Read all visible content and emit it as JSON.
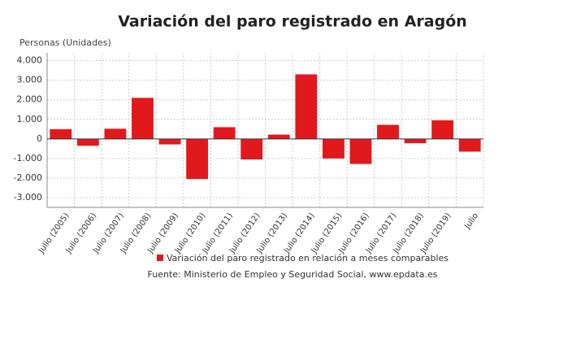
{
  "chart_data": {
    "type": "bar",
    "title": "Variación del paro registrado en Aragón",
    "y_label": "Personas (Unidades)",
    "categories": [
      "Julio (2005)",
      "Julio (2006)",
      "Julio (2007)",
      "Julio (2008)",
      "Julio (2009)",
      "Julio (2010)",
      "Julio (2011)",
      "Julio (2012)",
      "Julio (2013)",
      "Julio (2014)",
      "Julio (2015)",
      "Julio (2016)",
      "Julio (2017)",
      "Julio (2018)",
      "Julio (2019)",
      "Julio"
    ],
    "series": [
      {
        "name": "Variación del paro registrado en relación a meses comparables",
        "color": "#e2191c",
        "values": [
          500,
          -350,
          520,
          2100,
          -280,
          -2050,
          600,
          -1050,
          220,
          3300,
          -1000,
          -1280,
          720,
          -220,
          950,
          -650
        ]
      }
    ],
    "ylim": [
      -3500,
      4400
    ],
    "yticks": [
      {
        "value": -3000,
        "label": "-3.000"
      },
      {
        "value": -2000,
        "label": "-2.000"
      },
      {
        "value": -1000,
        "label": "-1.000"
      },
      0,
      {
        "value": 1000,
        "label": "1.000"
      },
      {
        "value": 2000,
        "label": "2.000"
      },
      {
        "value": 3000,
        "label": "3.000"
      },
      {
        "value": 4000,
        "label": "4.000"
      }
    ],
    "grid": true,
    "source": "Fuente: Ministerio de Empleo y Seguridad Social, www.epdata.es"
  }
}
